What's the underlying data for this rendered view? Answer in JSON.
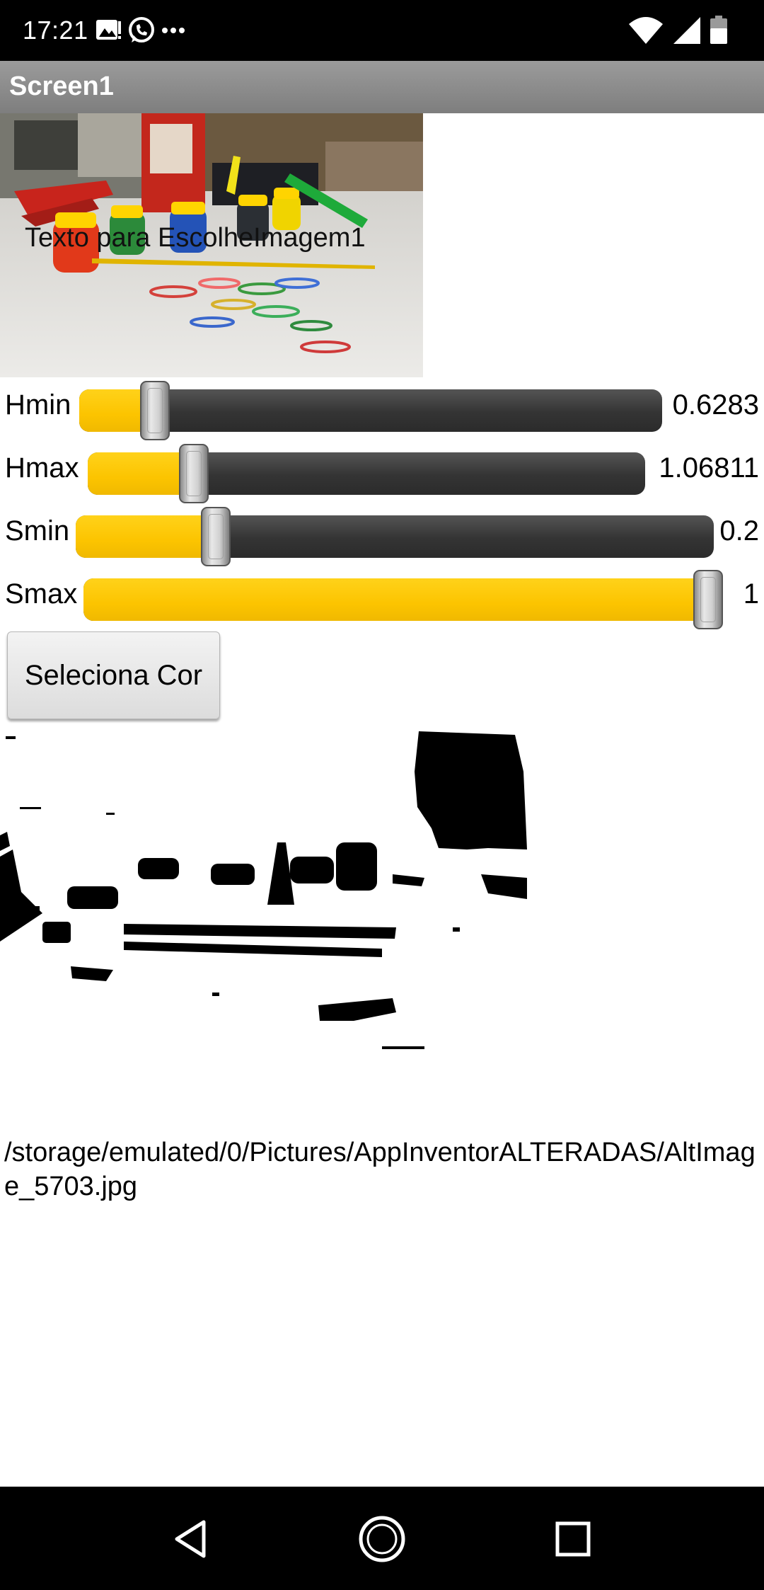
{
  "status_bar": {
    "time": "17:21",
    "icons": [
      "gallery-notification-icon",
      "whatsapp-icon",
      "more-notifications-icon",
      "wifi-icon",
      "signal-icon",
      "battery-icon"
    ]
  },
  "app": {
    "title": "Screen1",
    "accent_color": "#fcc400"
  },
  "image_picker": {
    "label": "Texto para EscolheImagem1"
  },
  "sliders": [
    {
      "label": "Hmin",
      "value": "0.6283",
      "fraction": 0.13
    },
    {
      "label": "Hmax",
      "value": "1.06811",
      "fraction": 0.19
    },
    {
      "label": "Smin",
      "value": "0.2",
      "fraction": 0.22
    },
    {
      "label": "Smax",
      "value": "1",
      "fraction": 1.0
    }
  ],
  "select_button": {
    "label": "Seleciona Cor"
  },
  "output": {
    "path": "/storage/emulated/0/Pictures/AppInventorALTERADAS/AltImage_5703.jpg"
  },
  "nav_bar": {
    "icons": [
      "back-icon",
      "home-icon",
      "recents-icon"
    ]
  }
}
